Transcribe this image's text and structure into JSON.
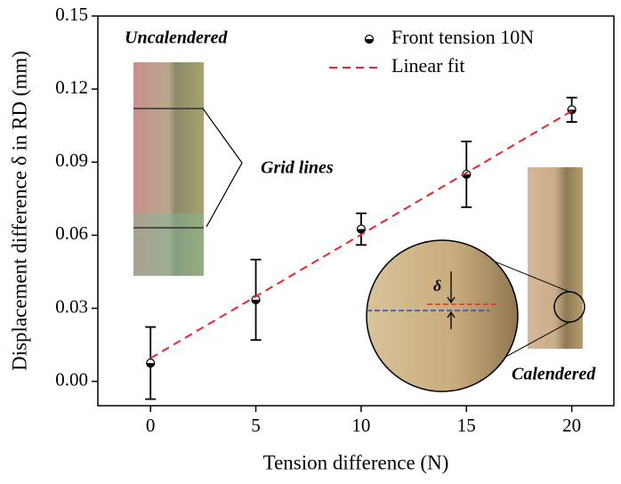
{
  "chart_data": {
    "type": "scatter",
    "x_label": "Tension difference (N)",
    "y_label": "Displacement difference δ in RD (mm)",
    "xlim": [
      -2.5,
      22
    ],
    "xticks": [
      0,
      5,
      10,
      15,
      20
    ],
    "ylim": [
      -0.01,
      0.15
    ],
    "yticks": [
      {
        "value": 0,
        "label": "0.00"
      },
      0.03,
      0.06,
      0.09,
      0.12,
      0.15
    ],
    "series": [
      {
        "name": "Front tension 10N",
        "color": "#000000",
        "x": [
          0,
          5,
          10,
          15,
          20
        ],
        "values": [
          0.0075,
          0.0335,
          0.0625,
          0.085,
          0.1115
        ],
        "errors": [
          0.0148,
          0.0165,
          0.0065,
          0.0135,
          0.005
        ]
      },
      {
        "name": "Linear fit",
        "color": "#e8242a",
        "x": [
          0,
          20
        ],
        "values": [
          0.0095,
          0.111
        ]
      }
    ],
    "annotations": [
      "Uncalendered",
      "Grid lines",
      "Calendered",
      "δ"
    ],
    "legend": "top-right"
  }
}
